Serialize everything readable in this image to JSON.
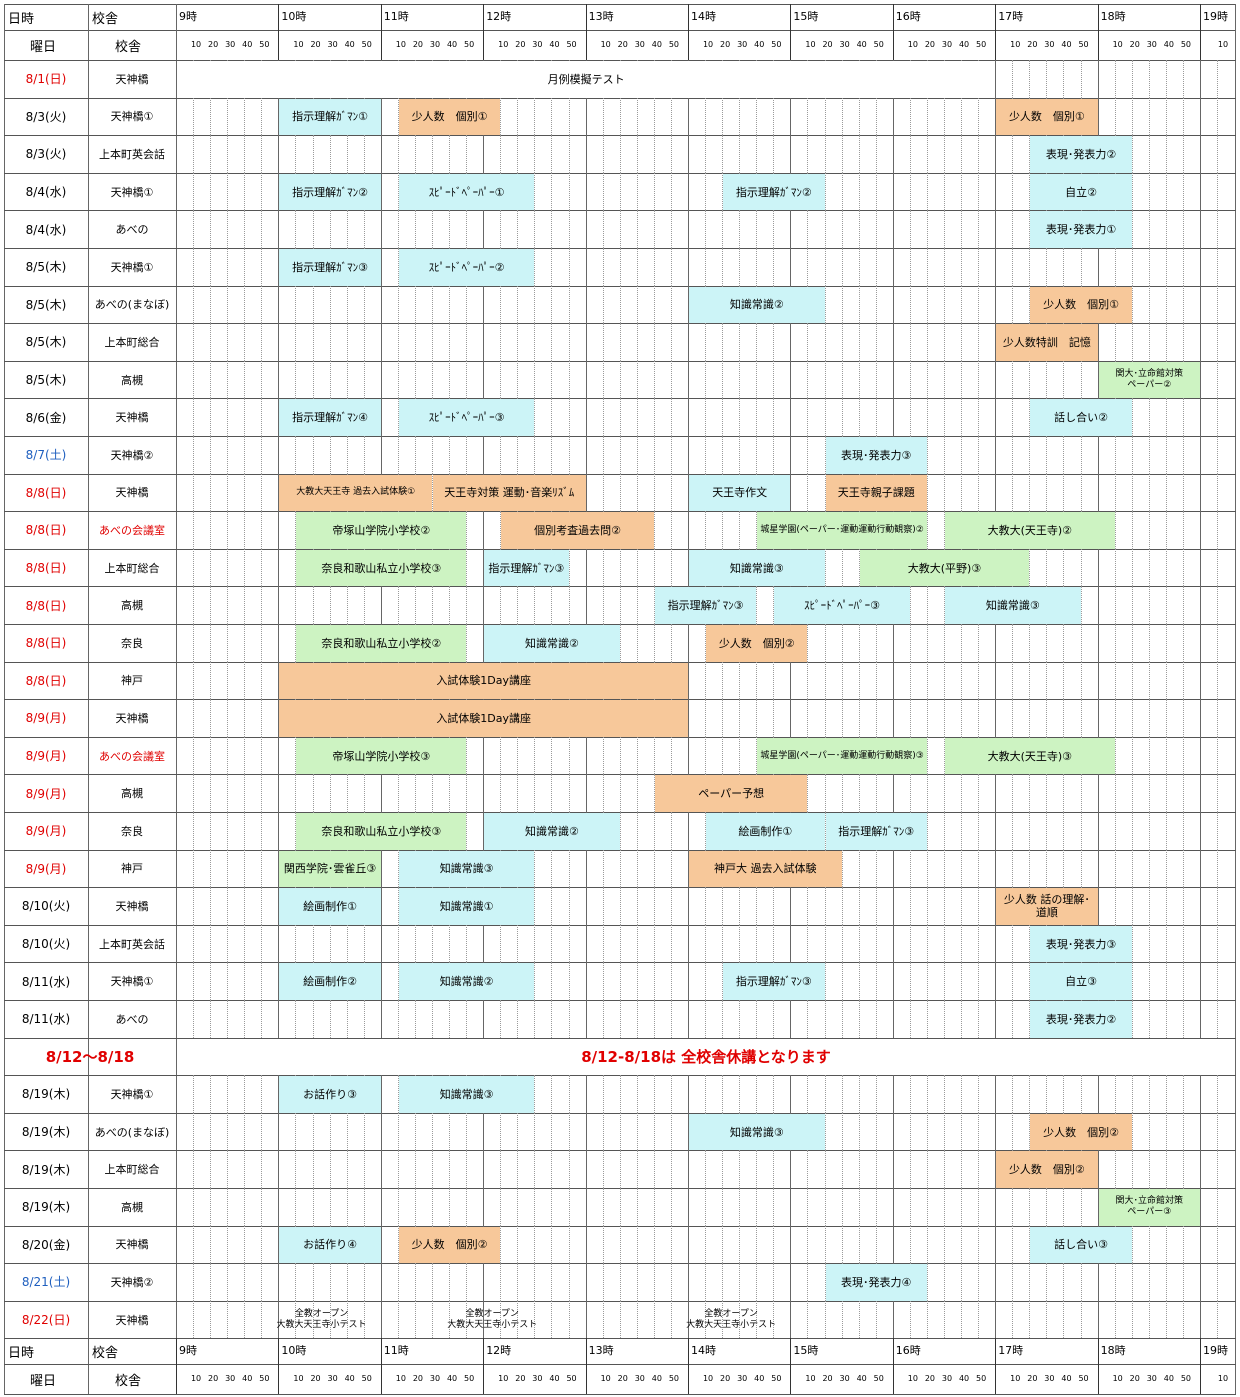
{
  "header": {
    "date_label": "日時",
    "campus_label": "校舎",
    "weekday_label": "曜日",
    "campus_label2": "校舎",
    "hours": [
      "9時",
      "10時",
      "11時",
      "12時",
      "13時",
      "14時",
      "15時",
      "16時",
      "17時",
      "18時",
      "19時"
    ],
    "minutes": [
      "10",
      "20",
      "30",
      "40",
      "50"
    ],
    "last_minute": "10"
  },
  "rows": [
    {
      "date": "8/1(日)",
      "campus": "天神橋",
      "date_color": "red",
      "campus_color": "black"
    },
    {
      "date": "8/3(火)",
      "campus": "天神橋①",
      "date_color": "black",
      "campus_color": "black"
    },
    {
      "date": "8/3(火)",
      "campus": "上本町英会話",
      "date_color": "black",
      "campus_color": "black"
    },
    {
      "date": "8/4(水)",
      "campus": "天神橋①",
      "date_color": "black",
      "campus_color": "black"
    },
    {
      "date": "8/4(水)",
      "campus": "あべの",
      "date_color": "black",
      "campus_color": "black"
    },
    {
      "date": "8/5(木)",
      "campus": "天神橋①",
      "date_color": "black",
      "campus_color": "black"
    },
    {
      "date": "8/5(木)",
      "campus": "あべの(まなぼ)",
      "date_color": "black",
      "campus_color": "black"
    },
    {
      "date": "8/5(木)",
      "campus": "上本町総合",
      "date_color": "black",
      "campus_color": "black"
    },
    {
      "date": "8/5(木)",
      "campus": "高槻",
      "date_color": "black",
      "campus_color": "black"
    },
    {
      "date": "8/6(金)",
      "campus": "天神橋",
      "date_color": "black",
      "campus_color": "black"
    },
    {
      "date": "8/7(土)",
      "campus": "天神橋②",
      "date_color": "blue",
      "campus_color": "black"
    },
    {
      "date": "8/8(日)",
      "campus": "天神橋",
      "date_color": "red",
      "campus_color": "black"
    },
    {
      "date": "8/8(日)",
      "campus": "あべの会議室",
      "date_color": "red",
      "campus_color": "red"
    },
    {
      "date": "8/8(日)",
      "campus": "上本町総合",
      "date_color": "red",
      "campus_color": "black"
    },
    {
      "date": "8/8(日)",
      "campus": "高槻",
      "date_color": "red",
      "campus_color": "black"
    },
    {
      "date": "8/8(日)",
      "campus": "奈良",
      "date_color": "red",
      "campus_color": "black"
    },
    {
      "date": "8/8(日)",
      "campus": "神戸",
      "date_color": "red",
      "campus_color": "black"
    },
    {
      "date": "8/9(月)",
      "campus": "天神橋",
      "date_color": "red",
      "campus_color": "black"
    },
    {
      "date": "8/9(月)",
      "campus": "あべの会議室",
      "date_color": "red",
      "campus_color": "red"
    },
    {
      "date": "8/9(月)",
      "campus": "高槻",
      "date_color": "red",
      "campus_color": "black"
    },
    {
      "date": "8/9(月)",
      "campus": "奈良",
      "date_color": "red",
      "campus_color": "black"
    },
    {
      "date": "8/9(月)",
      "campus": "神戸",
      "date_color": "red",
      "campus_color": "black"
    },
    {
      "date": "8/10(火)",
      "campus": "天神橋",
      "date_color": "black",
      "campus_color": "black"
    },
    {
      "date": "8/10(火)",
      "campus": "上本町英会話",
      "date_color": "black",
      "campus_color": "black"
    },
    {
      "date": "8/11(水)",
      "campus": "天神橋①",
      "date_color": "black",
      "campus_color": "black"
    },
    {
      "date": "8/11(水)",
      "campus": "あべの",
      "date_color": "black",
      "campus_color": "black"
    },
    {
      "date": "8/12～8/18",
      "campus": "",
      "date_color": "red",
      "campus_color": "black",
      "message": "8/12-8/18は 全校舎休講となります"
    },
    {
      "date": "8/19(木)",
      "campus": "天神橋①",
      "date_color": "black",
      "campus_color": "black"
    },
    {
      "date": "8/19(木)",
      "campus": "あべの(まなぼ)",
      "date_color": "black",
      "campus_color": "black"
    },
    {
      "date": "8/19(木)",
      "campus": "上本町総合",
      "date_color": "black",
      "campus_color": "black"
    },
    {
      "date": "8/19(木)",
      "campus": "高槻",
      "date_color": "black",
      "campus_color": "black"
    },
    {
      "date": "8/20(金)",
      "campus": "天神橋",
      "date_color": "black",
      "campus_color": "black"
    },
    {
      "date": "8/21(土)",
      "campus": "天神橋②",
      "date_color": "blue",
      "campus_color": "black"
    },
    {
      "date": "8/22(日)",
      "campus": "天神橋",
      "date_color": "red",
      "campus_color": "black"
    }
  ],
  "events": [
    {
      "row": 0,
      "start": "9:00",
      "end": "17:00",
      "label": "月例模擬テスト",
      "color": "white"
    },
    {
      "row": 1,
      "start": "10:00",
      "end": "11:00",
      "label": "指示理解ｶﾞﾏﾝ①",
      "color": "cyan"
    },
    {
      "row": 1,
      "start": "11:10",
      "end": "12:10",
      "label": "少人数　個別①",
      "color": "orange"
    },
    {
      "row": 1,
      "start": "17:00",
      "end": "18:00",
      "label": "少人数　個別①",
      "color": "orange"
    },
    {
      "row": 2,
      "start": "17:20",
      "end": "18:20",
      "label": "表現･発表力②",
      "color": "cyan"
    },
    {
      "row": 3,
      "start": "10:00",
      "end": "11:00",
      "label": "指示理解ｶﾞﾏﾝ②",
      "color": "cyan"
    },
    {
      "row": 3,
      "start": "11:10",
      "end": "12:30",
      "label": "ｽﾋﾟｰﾄﾞﾍﾟｰﾊﾟｰ①",
      "color": "cyan"
    },
    {
      "row": 3,
      "start": "14:20",
      "end": "15:20",
      "label": "指示理解ｶﾞﾏﾝ②",
      "color": "cyan"
    },
    {
      "row": 3,
      "start": "17:20",
      "end": "18:20",
      "label": "自立②",
      "color": "cyan"
    },
    {
      "row": 4,
      "start": "17:20",
      "end": "18:20",
      "label": "表現･発表力①",
      "color": "cyan"
    },
    {
      "row": 5,
      "start": "10:00",
      "end": "11:00",
      "label": "指示理解ｶﾞﾏﾝ③",
      "color": "cyan"
    },
    {
      "row": 5,
      "start": "11:10",
      "end": "12:30",
      "label": "ｽﾋﾟｰﾄﾞﾍﾟｰﾊﾟｰ②",
      "color": "cyan"
    },
    {
      "row": 6,
      "start": "14:00",
      "end": "15:20",
      "label": "知識常識②",
      "color": "cyan"
    },
    {
      "row": 6,
      "start": "17:20",
      "end": "18:20",
      "label": "少人数　個別①",
      "color": "orange"
    },
    {
      "row": 7,
      "start": "17:00",
      "end": "18:00",
      "label": "少人数特訓　記憶",
      "color": "orange"
    },
    {
      "row": 8,
      "start": "18:00",
      "end": "19:00",
      "label": "関大･立命館対策\nペーパー②",
      "color": "green",
      "small": true
    },
    {
      "row": 9,
      "start": "10:00",
      "end": "11:00",
      "label": "指示理解ｶﾞﾏﾝ④",
      "color": "cyan"
    },
    {
      "row": 9,
      "start": "11:10",
      "end": "12:30",
      "label": "ｽﾋﾟｰﾄﾞﾍﾟｰﾊﾟｰ③",
      "color": "cyan"
    },
    {
      "row": 9,
      "start": "17:20",
      "end": "18:20",
      "label": "話し合い②",
      "color": "cyan"
    },
    {
      "row": 10,
      "start": "15:20",
      "end": "16:20",
      "label": "表現･発表力③",
      "color": "cyan"
    },
    {
      "row": 11,
      "start": "10:00",
      "end": "11:30",
      "label": "大教大天王寺 過去入試体験①",
      "color": "orange",
      "small": true
    },
    {
      "row": 11,
      "start": "11:30",
      "end": "13:00",
      "label": "天王寺対策 運動･音楽ﾘｽﾞﾑ",
      "color": "orange"
    },
    {
      "row": 11,
      "start": "14:00",
      "end": "15:00",
      "label": "天王寺作文",
      "color": "cyan"
    },
    {
      "row": 11,
      "start": "15:20",
      "end": "16:20",
      "label": "天王寺親子課題",
      "color": "orange"
    },
    {
      "row": 12,
      "start": "10:10",
      "end": "11:50",
      "label": "帝塚山学院小学校②",
      "color": "green"
    },
    {
      "row": 12,
      "start": "12:10",
      "end": "13:40",
      "label": "個別考査過去問②",
      "color": "orange"
    },
    {
      "row": 12,
      "start": "14:40",
      "end": "16:20",
      "label": "城星学園(ペーパー･運動運動行動観察)②",
      "color": "green",
      "small": true
    },
    {
      "row": 12,
      "start": "16:30",
      "end": "18:10",
      "label": "大教大(天王寺)②",
      "color": "green"
    },
    {
      "row": 13,
      "start": "10:10",
      "end": "11:50",
      "label": "奈良和歌山私立小学校③",
      "color": "green"
    },
    {
      "row": 13,
      "start": "12:00",
      "end": "12:50",
      "label": "指示理解ｶﾞﾏﾝ③",
      "color": "cyan"
    },
    {
      "row": 13,
      "start": "14:00",
      "end": "15:20",
      "label": "知識常識③",
      "color": "cyan"
    },
    {
      "row": 13,
      "start": "15:40",
      "end": "17:20",
      "label": "大教大(平野)③",
      "color": "green"
    },
    {
      "row": 14,
      "start": "13:40",
      "end": "14:40",
      "label": "指示理解ｶﾞﾏﾝ③",
      "color": "cyan"
    },
    {
      "row": 14,
      "start": "14:50",
      "end": "16:10",
      "label": "ｽﾋﾟｰﾄﾞﾍﾟｰﾊﾟｰ③",
      "color": "cyan"
    },
    {
      "row": 14,
      "start": "16:30",
      "end": "17:50",
      "label": "知識常識③",
      "color": "cyan"
    },
    {
      "row": 15,
      "start": "10:10",
      "end": "11:50",
      "label": "奈良和歌山私立小学校②",
      "color": "green"
    },
    {
      "row": 15,
      "start": "12:00",
      "end": "13:20",
      "label": "知識常識②",
      "color": "cyan"
    },
    {
      "row": 15,
      "start": "14:10",
      "end": "15:10",
      "label": "少人数　個別②",
      "color": "orange"
    },
    {
      "row": 16,
      "start": "10:00",
      "end": "14:00",
      "label": "入試体験1Day講座",
      "color": "orange"
    },
    {
      "row": 17,
      "start": "10:00",
      "end": "14:00",
      "label": "入試体験1Day講座",
      "color": "orange"
    },
    {
      "row": 18,
      "start": "10:10",
      "end": "11:50",
      "label": "帝塚山学院小学校③",
      "color": "green"
    },
    {
      "row": 18,
      "start": "14:40",
      "end": "16:20",
      "label": "城星学園(ペーパー･運動運動行動観察)③",
      "color": "green",
      "small": true
    },
    {
      "row": 18,
      "start": "16:30",
      "end": "18:10",
      "label": "大教大(天王寺)③",
      "color": "green"
    },
    {
      "row": 19,
      "start": "13:40",
      "end": "15:10",
      "label": "ペーパー予想",
      "color": "orange"
    },
    {
      "row": 20,
      "start": "10:10",
      "end": "11:50",
      "label": "奈良和歌山私立小学校③",
      "color": "green"
    },
    {
      "row": 20,
      "start": "12:00",
      "end": "13:20",
      "label": "知識常識②",
      "color": "cyan"
    },
    {
      "row": 20,
      "start": "14:10",
      "end": "15:20",
      "label": "絵画制作①",
      "color": "cyan"
    },
    {
      "row": 20,
      "start": "15:20",
      "end": "16:20",
      "label": "指示理解ｶﾞﾏﾝ③",
      "color": "cyan"
    },
    {
      "row": 21,
      "start": "10:00",
      "end": "11:00",
      "label": "関西学院･雲雀丘③",
      "color": "green"
    },
    {
      "row": 21,
      "start": "11:10",
      "end": "12:30",
      "label": "知識常識③",
      "color": "cyan"
    },
    {
      "row": 21,
      "start": "14:00",
      "end": "15:30",
      "label": "神戸大 過去入試体験",
      "color": "orange"
    },
    {
      "row": 22,
      "start": "10:00",
      "end": "11:00",
      "label": "絵画制作①",
      "color": "cyan"
    },
    {
      "row": 22,
      "start": "11:10",
      "end": "12:30",
      "label": "知識常識①",
      "color": "cyan"
    },
    {
      "row": 22,
      "start": "17:00",
      "end": "18:00",
      "label": "少人数 話の理解･\n道順",
      "color": "orange"
    },
    {
      "row": 23,
      "start": "17:20",
      "end": "18:20",
      "label": "表現･発表力③",
      "color": "cyan"
    },
    {
      "row": 24,
      "start": "10:00",
      "end": "11:00",
      "label": "絵画制作②",
      "color": "cyan"
    },
    {
      "row": 24,
      "start": "11:10",
      "end": "12:30",
      "label": "知識常識②",
      "color": "cyan"
    },
    {
      "row": 24,
      "start": "14:20",
      "end": "15:20",
      "label": "指示理解ｶﾞﾏﾝ③",
      "color": "cyan"
    },
    {
      "row": 24,
      "start": "17:20",
      "end": "18:20",
      "label": "自立③",
      "color": "cyan"
    },
    {
      "row": 25,
      "start": "17:20",
      "end": "18:20",
      "label": "表現･発表力②",
      "color": "cyan"
    },
    {
      "row": 27,
      "start": "10:00",
      "end": "11:00",
      "label": "お話作り③",
      "color": "cyan"
    },
    {
      "row": 27,
      "start": "11:10",
      "end": "12:30",
      "label": "知識常識③",
      "color": "cyan"
    },
    {
      "row": 28,
      "start": "14:00",
      "end": "15:20",
      "label": "知識常識③",
      "color": "cyan"
    },
    {
      "row": 28,
      "start": "17:20",
      "end": "18:20",
      "label": "少人数　個別②",
      "color": "orange"
    },
    {
      "row": 29,
      "start": "17:00",
      "end": "18:00",
      "label": "少人数　個別②",
      "color": "orange"
    },
    {
      "row": 30,
      "start": "18:00",
      "end": "19:00",
      "label": "関大･立命館対策\nペーパー③",
      "color": "green",
      "small": true
    },
    {
      "row": 31,
      "start": "10:00",
      "end": "11:00",
      "label": "お話作り④",
      "color": "cyan"
    },
    {
      "row": 31,
      "start": "11:10",
      "end": "12:10",
      "label": "少人数　個別②",
      "color": "orange"
    },
    {
      "row": 31,
      "start": "17:20",
      "end": "18:20",
      "label": "話し合い③",
      "color": "cyan"
    },
    {
      "row": 32,
      "start": "15:20",
      "end": "16:20",
      "label": "表現･発表力④",
      "color": "cyan"
    },
    {
      "row": 33,
      "start": "9:40",
      "end": "11:10",
      "label": "全教オープン\n大教大天王寺小テスト",
      "color": "plain",
      "small": true
    },
    {
      "row": 33,
      "start": "11:20",
      "end": "12:50",
      "label": "全教オープン\n大教大天王寺小テスト",
      "color": "plain",
      "small": true
    },
    {
      "row": 33,
      "start": "13:40",
      "end": "15:10",
      "label": "全教オープン\n大教大天王寺小テスト",
      "color": "plain",
      "small": true
    }
  ]
}
